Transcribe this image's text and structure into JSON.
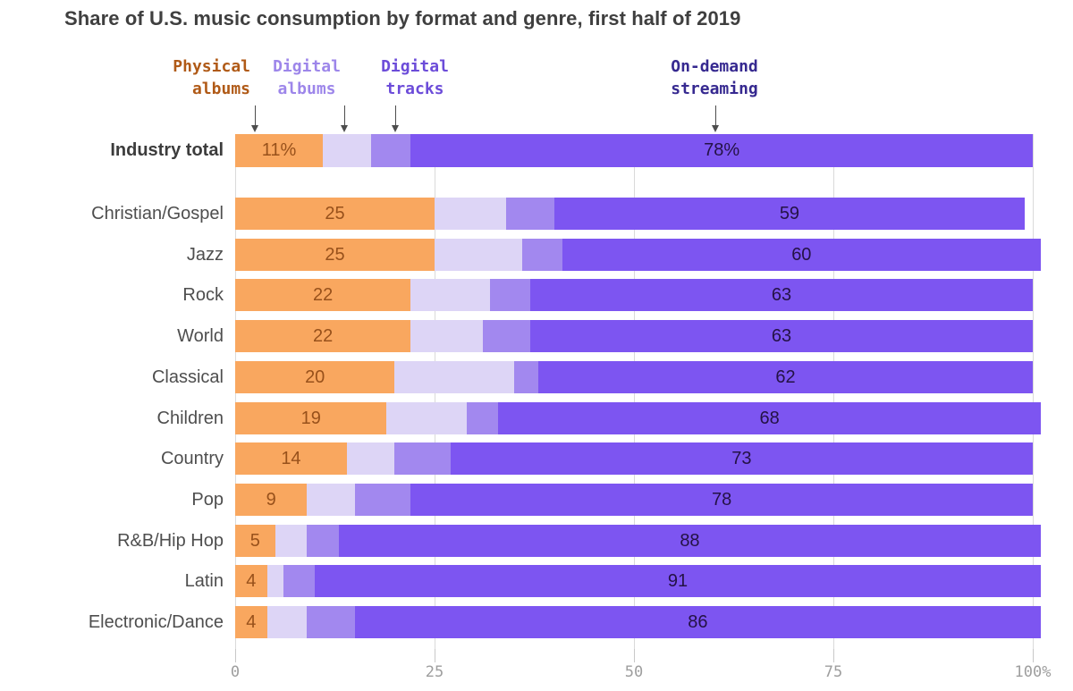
{
  "title": "Share of U.S. music consumption by format and genre, first half of 2019",
  "legend": [
    {
      "label": "Physical\nalbums",
      "color": "#B05A17"
    },
    {
      "label": "Digital\nalbums",
      "color": "#9D86EA"
    },
    {
      "label": "Digital\ntracks",
      "color": "#6C4CD9"
    },
    {
      "label": "On-demand\nstreaming",
      "color": "#362990"
    }
  ],
  "chart_data": {
    "type": "bar",
    "stacked": true,
    "orientation": "horizontal",
    "title": "Share of U.S. music consumption by format and genre, first half of 2019",
    "series_names": [
      "Physical albums",
      "Digital albums",
      "Digital tracks",
      "On-demand streaming"
    ],
    "series_colors": [
      "#F9A75F",
      "#DDD5F6",
      "#A288EF",
      "#7D55F1"
    ],
    "value_text_colors": {
      "on_physical": "#98511B",
      "on_streaming": "#241245"
    },
    "grid_color": "#dadada",
    "legend_position": "top",
    "x_axis": {
      "tick_labels": [
        "0",
        "25",
        "50",
        "75",
        "100%"
      ],
      "tick_values": [
        0,
        25,
        50,
        75,
        100
      ],
      "max": 100
    },
    "rows": [
      {
        "label": "Industry total",
        "emphasis": true,
        "values": [
          11,
          6,
          5,
          78
        ],
        "value_labels": [
          "11%",
          "78%"
        ]
      },
      {
        "label": "Christian/Gospel",
        "emphasis": false,
        "values": [
          25,
          9,
          6,
          59
        ],
        "value_labels": [
          "25",
          "59"
        ]
      },
      {
        "label": "Jazz",
        "emphasis": false,
        "values": [
          25,
          11,
          5,
          60
        ],
        "value_labels": [
          "25",
          "60"
        ]
      },
      {
        "label": "Rock",
        "emphasis": false,
        "values": [
          22,
          10,
          5,
          63
        ],
        "value_labels": [
          "22",
          "63"
        ]
      },
      {
        "label": "World",
        "emphasis": false,
        "values": [
          22,
          9,
          6,
          63
        ],
        "value_labels": [
          "22",
          "63"
        ]
      },
      {
        "label": "Classical",
        "emphasis": false,
        "values": [
          20,
          15,
          3,
          62
        ],
        "value_labels": [
          "20",
          "62"
        ]
      },
      {
        "label": "Children",
        "emphasis": false,
        "values": [
          19,
          10,
          4,
          68
        ],
        "value_labels": [
          "19",
          "68"
        ]
      },
      {
        "label": "Country",
        "emphasis": false,
        "values": [
          14,
          6,
          7,
          73
        ],
        "value_labels": [
          "14",
          "73"
        ]
      },
      {
        "label": "Pop",
        "emphasis": false,
        "values": [
          9,
          6,
          7,
          78
        ],
        "value_labels": [
          "9",
          "78"
        ]
      },
      {
        "label": "R&B/Hip Hop",
        "emphasis": false,
        "values": [
          5,
          4,
          4,
          88
        ],
        "value_labels": [
          "5",
          "88"
        ]
      },
      {
        "label": "Latin",
        "emphasis": false,
        "values": [
          4,
          2,
          4,
          91
        ],
        "value_labels": [
          "4",
          "91"
        ]
      },
      {
        "label": "Electronic/Dance",
        "emphasis": false,
        "values": [
          4,
          5,
          6,
          86
        ],
        "value_labels": [
          "4",
          "86"
        ]
      }
    ]
  }
}
